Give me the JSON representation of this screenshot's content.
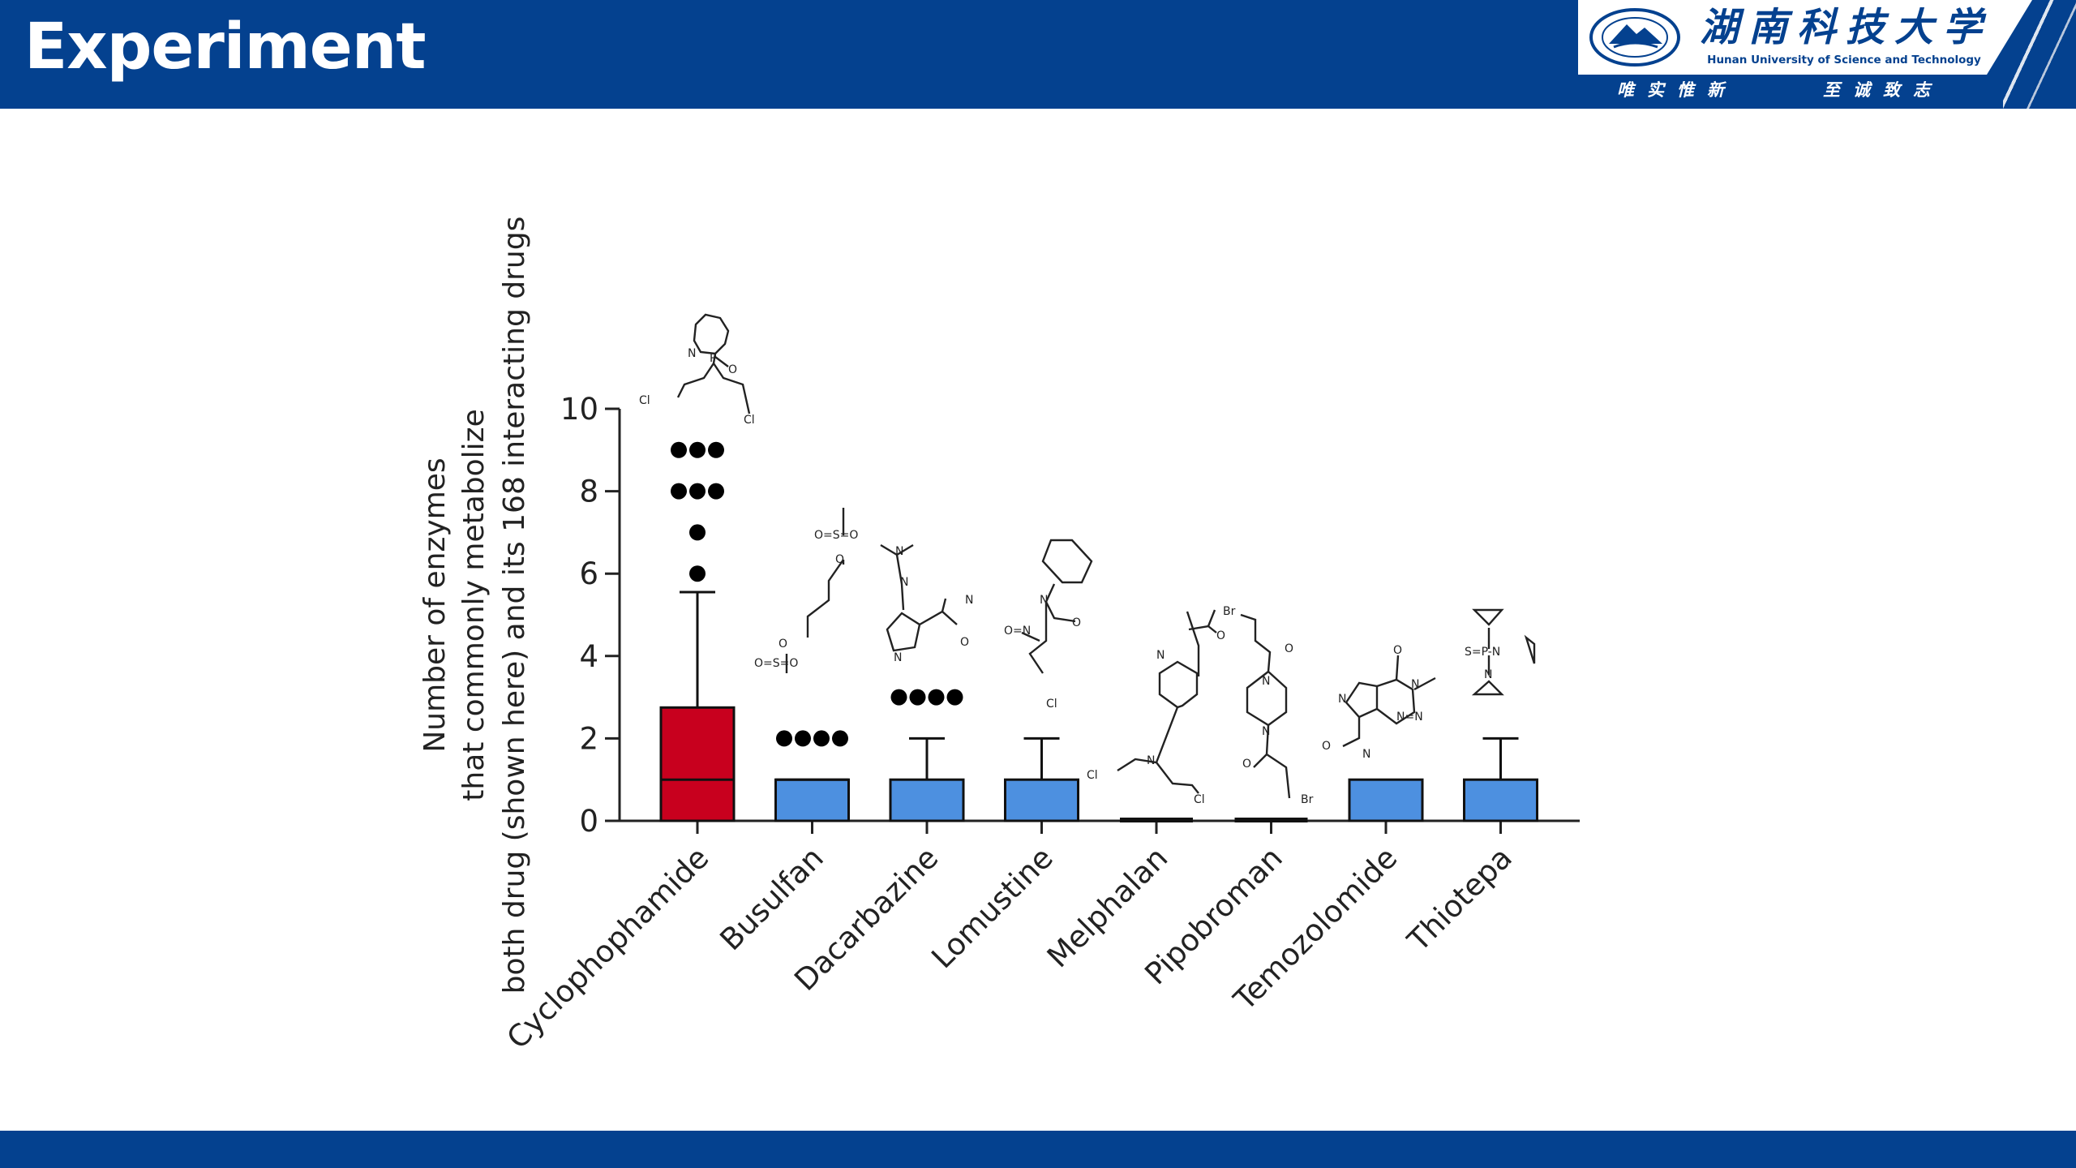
{
  "header": {
    "title": "Experiment",
    "university_cn": "湖南科技大学",
    "university_en": "Hunan University of Science and Technology",
    "motto_left": "唯实惟新",
    "motto_right": "至诚致志",
    "seal_icon": "university-seal-icon"
  },
  "colors": {
    "banner": "#04418f",
    "highlight_box": "#c8001e",
    "box": "#4d90e0",
    "outline": "#111111"
  },
  "chart_data": {
    "type": "box",
    "ylabel_lines": [
      "Number of enzymes",
      "that commonly metabolize",
      "both drug (shown here) and its 168 interacting drugs"
    ],
    "ylim": [
      0,
      10
    ],
    "yticks": [
      "0",
      "2",
      "4",
      "6",
      "8",
      "10"
    ],
    "categories": [
      "Cyclophophamide",
      "Busulfan",
      "Dacarbazine",
      "Lomustine",
      "Melphalan",
      "Pipobroman",
      "Temozolomide",
      "Thiotepa"
    ],
    "series": [
      {
        "name": "Cyclophophamide",
        "q1": 0,
        "median": 1,
        "q3": 2.75,
        "whisker_low": 0,
        "whisker_high": 5.55,
        "outliers": [
          6,
          7,
          8,
          8,
          8,
          9,
          9,
          9
        ],
        "highlight": true,
        "molecule": "cyclophosphamide"
      },
      {
        "name": "Busulfan",
        "q1": 0,
        "median": 1,
        "q3": 1,
        "whisker_low": 0,
        "whisker_high": 1,
        "outliers": [
          2,
          2,
          2,
          2
        ],
        "highlight": false,
        "molecule": "busulfan"
      },
      {
        "name": "Dacarbazine",
        "q1": 0,
        "median": 0,
        "q3": 1,
        "whisker_low": 0,
        "whisker_high": 2,
        "outliers": [
          3,
          3,
          3,
          3
        ],
        "highlight": false,
        "molecule": "dacarbazine"
      },
      {
        "name": "Lomustine",
        "q1": 0,
        "median": 0,
        "q3": 1,
        "whisker_low": 0,
        "whisker_high": 2,
        "outliers": [],
        "highlight": false,
        "molecule": "lomustine"
      },
      {
        "name": "Melphalan",
        "q1": 0,
        "median": 0,
        "q3": 0,
        "whisker_low": 0,
        "whisker_high": 0,
        "outliers": [],
        "highlight": false,
        "molecule": "melphalan"
      },
      {
        "name": "Pipobroman",
        "q1": 0,
        "median": 0,
        "q3": 0,
        "whisker_low": 0,
        "whisker_high": 0,
        "outliers": [],
        "highlight": false,
        "molecule": "pipobroman"
      },
      {
        "name": "Temozolomide",
        "q1": 0,
        "median": 0,
        "q3": 1,
        "whisker_low": 0,
        "whisker_high": 1,
        "outliers": [],
        "highlight": false,
        "molecule": "temozolomide"
      },
      {
        "name": "Thiotepa",
        "q1": 0,
        "median": 0,
        "q3": 1,
        "whisker_low": 0,
        "whisker_high": 2,
        "outliers": [],
        "highlight": false,
        "molecule": "thiotepa"
      }
    ]
  }
}
